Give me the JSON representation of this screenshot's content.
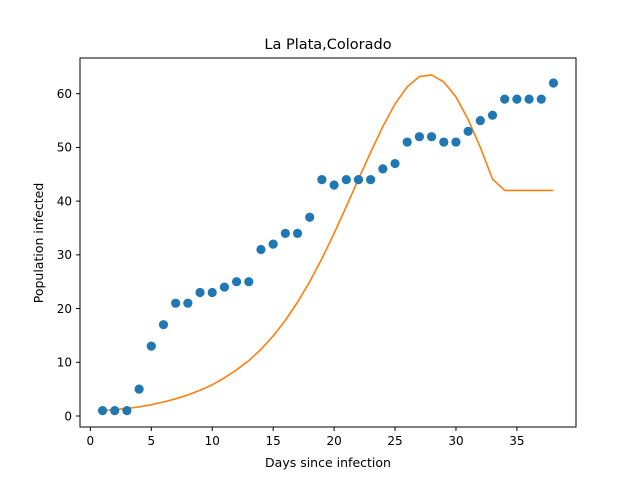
{
  "chart_data": {
    "type": "scatter",
    "title": "La Plata,Colorado",
    "xlabel": "Days since infection",
    "ylabel": "Population infected",
    "xlim": [
      -0.85,
      39.85
    ],
    "ylim": [
      -2.05,
      66.65
    ],
    "x_ticks": [
      0,
      5,
      10,
      15,
      20,
      25,
      30,
      35
    ],
    "y_ticks": [
      0,
      10,
      20,
      30,
      40,
      50,
      60
    ],
    "grid": false,
    "legend": "none",
    "series": [
      {
        "kind": "scatter",
        "color": "#1f77b4",
        "x": [
          1,
          2,
          3,
          4,
          5,
          6,
          7,
          8,
          9,
          10,
          11,
          12,
          13,
          14,
          15,
          16,
          17,
          18,
          19,
          20,
          21,
          22,
          23,
          24,
          25,
          26,
          27,
          28,
          29,
          30,
          31,
          32,
          33,
          34,
          35,
          36,
          37,
          38
        ],
        "y": [
          1,
          1,
          1,
          5,
          13,
          17,
          21,
          21,
          23,
          23,
          24,
          25,
          25,
          31,
          32,
          34,
          34,
          37,
          44,
          43,
          44,
          44,
          44,
          46,
          47,
          51,
          52,
          52,
          51,
          51,
          53,
          55,
          56,
          59,
          59,
          59,
          59,
          62
        ]
      },
      {
        "kind": "line",
        "color": "#ff7f0e",
        "x": [
          1,
          2,
          3,
          4,
          5,
          6,
          7,
          8,
          9,
          10,
          11,
          12,
          13,
          14,
          15,
          16,
          17,
          18,
          19,
          20,
          21,
          22,
          23,
          24,
          25,
          26,
          27,
          28,
          29,
          30,
          31,
          32,
          33,
          34,
          35,
          36,
          37,
          38
        ],
        "y": [
          1.0,
          1.2,
          1.4,
          1.7,
          2.1,
          2.6,
          3.2,
          3.9,
          4.8,
          5.8,
          7.1,
          8.6,
          10.3,
          12.4,
          14.9,
          17.8,
          21.2,
          25.0,
          29.3,
          34.0,
          39.0,
          44.1,
          49.1,
          53.9,
          58.1,
          61.3,
          63.2,
          63.5,
          62.2,
          59.4,
          55.2,
          50.0,
          44.1,
          42.0,
          42.0,
          42.0,
          42.0,
          42.0
        ]
      }
    ]
  }
}
